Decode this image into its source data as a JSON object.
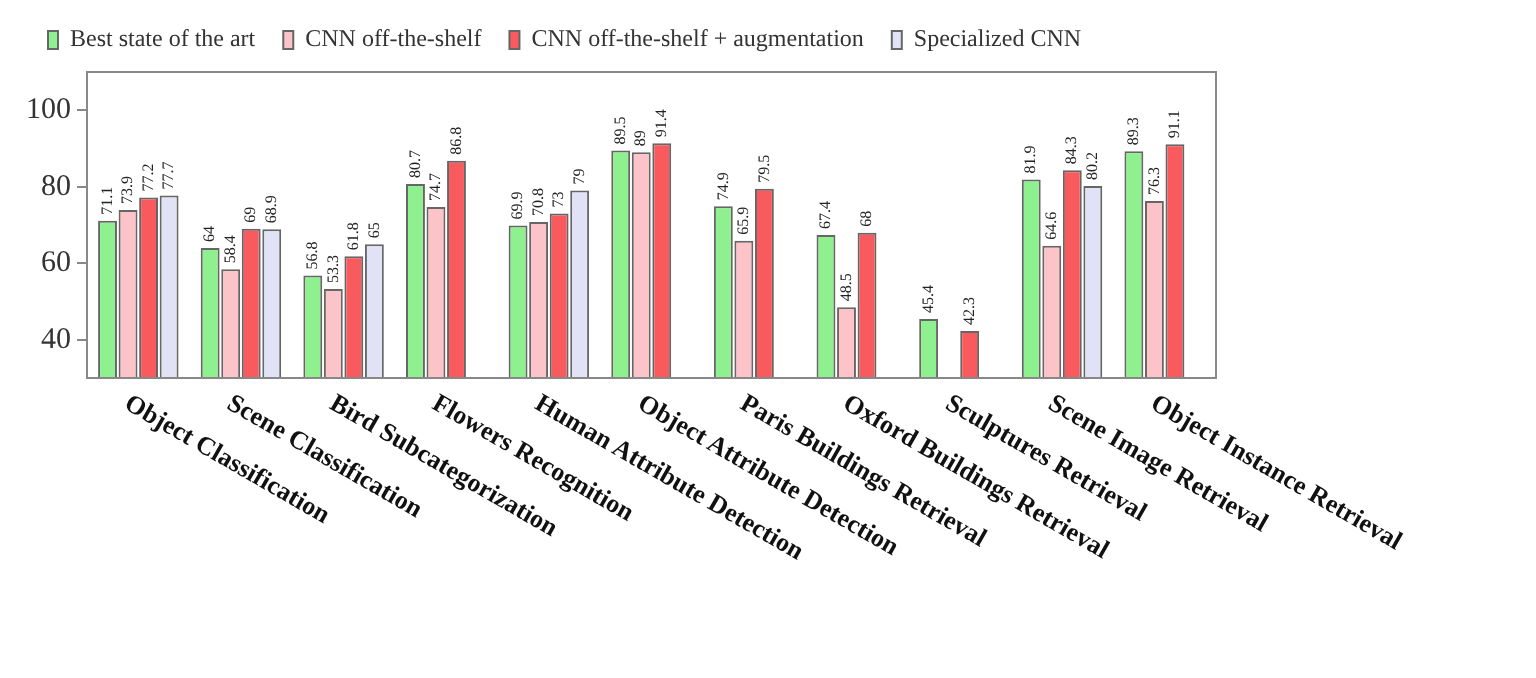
{
  "chart_data": {
    "type": "bar",
    "categories": [
      "Object Classification",
      "Scene Classification",
      "Bird Subcategorization",
      "Flowers Recognition",
      "Human Attribute Detection",
      "Object Attribute Detection",
      "Paris Buildings Retrieval",
      "Oxford Buildings Retrieval",
      "Sculptures Retrieval",
      "Scene Image Retrieval",
      "Object Instance Retrieval"
    ],
    "series": [
      {
        "name": "Best state of the art",
        "color": "#8ef08e",
        "values": [
          71.1,
          64,
          56.8,
          80.7,
          69.9,
          89.5,
          74.9,
          67.4,
          45.4,
          81.9,
          89.3
        ]
      },
      {
        "name": "CNN off-the-shelf",
        "color": "#fcc4c8",
        "values": [
          73.9,
          58.4,
          53.3,
          74.7,
          70.8,
          89,
          65.9,
          48.5,
          null,
          64.6,
          76.3
        ]
      },
      {
        "name": "CNN off-the-shelf + augmentation",
        "color": "#f85a5e",
        "values": [
          77.2,
          69,
          61.8,
          86.8,
          73,
          91.4,
          79.5,
          68,
          42.3,
          84.3,
          91.1
        ]
      },
      {
        "name": "Specialized CNN",
        "color": "#e2e2f6",
        "values": [
          77.7,
          68.9,
          65,
          null,
          79,
          null,
          null,
          null,
          null,
          80.2,
          null
        ]
      }
    ],
    "ylim": [
      30,
      110
    ],
    "yticks": [
      40,
      60,
      80,
      100
    ],
    "grid": false,
    "legend": "top",
    "data_labels": true
  }
}
